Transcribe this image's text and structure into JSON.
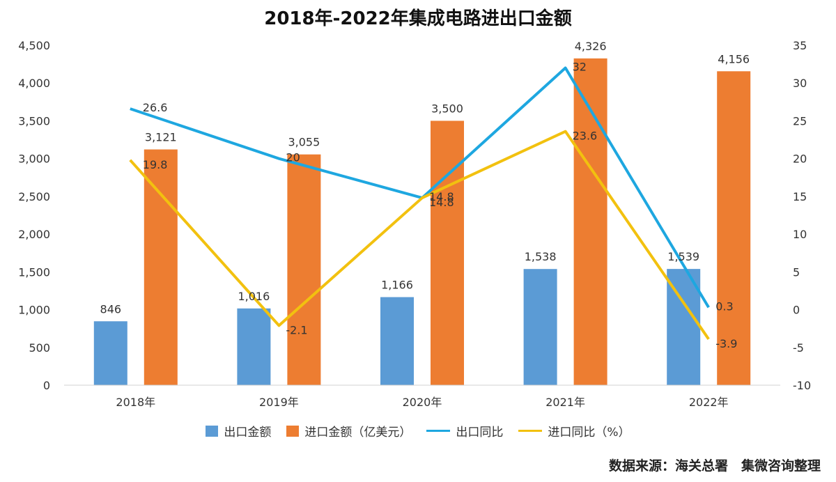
{
  "title": "2018年-2022年集成电路进出口金额",
  "source": "数据来源：海关总署　集微咨询整理",
  "chart_data": {
    "type": "bar",
    "title": "2018年-2022年集成电路进出口金额",
    "categories": [
      "2018年",
      "2019年",
      "2020年",
      "2021年",
      "2022年"
    ],
    "bar_series": [
      {
        "name": "出口金额",
        "color": "#5b9bd5",
        "values": [
          846,
          1016,
          1166,
          1538,
          1539
        ],
        "labels": [
          "846",
          "1,016",
          "1,166",
          "1,538",
          "1,539"
        ]
      },
      {
        "name": "进口金额（亿美元）",
        "color": "#ed7d31",
        "values": [
          3121,
          3055,
          3500,
          4326,
          4156
        ],
        "labels": [
          "3,121",
          "3,055",
          "3,500",
          "4,326",
          "4,156"
        ]
      }
    ],
    "line_series": [
      {
        "name": "出口同比",
        "color": "#1ea7e0",
        "values": [
          26.6,
          20,
          14.8,
          32,
          0.3
        ],
        "labels": [
          "26.6",
          "20",
          "14.8",
          "32",
          "0.3"
        ]
      },
      {
        "name": "进口同比（%）",
        "color": "#f2c10f",
        "values": [
          19.8,
          -2.1,
          14.8,
          23.6,
          -3.9
        ],
        "labels": [
          "19.8",
          "-2.1",
          "14.8",
          "23.6",
          "-3.9"
        ]
      }
    ],
    "y_left": {
      "min": 0,
      "max": 4500,
      "step": 500,
      "tick_labels": [
        "0",
        "500",
        "1,000",
        "1,500",
        "2,000",
        "2,500",
        "3,000",
        "3,500",
        "4,000",
        "4,500"
      ]
    },
    "y_right": {
      "min": -10,
      "max": 35,
      "step": 5,
      "tick_labels": [
        "-10",
        "-5",
        "0",
        "5",
        "10",
        "15",
        "20",
        "25",
        "30",
        "35"
      ]
    },
    "grid": false,
    "legend": "bottom"
  }
}
